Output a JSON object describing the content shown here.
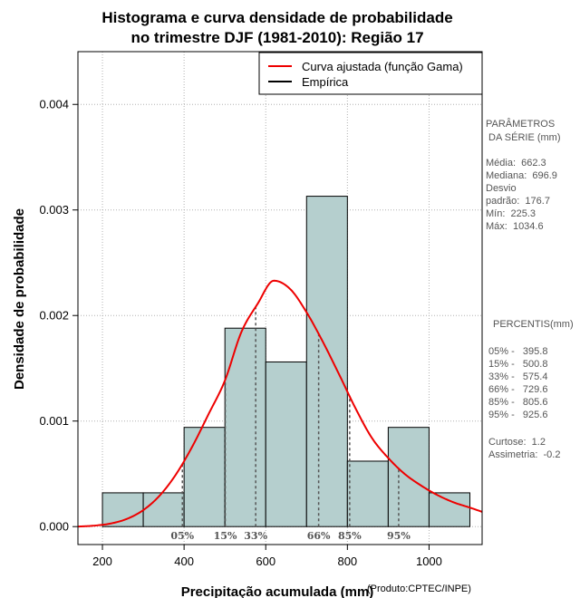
{
  "chart_data": {
    "type": "histogram",
    "title_lines": [
      "Histograma e curva densidade de probabilidade",
      "no trimestre DJF (1981-2010): Região 17"
    ],
    "xlabel": "Precipitação acumulada (mm)",
    "ylabel": "Densidade de probabilidade",
    "credit": "(Produto:CPTEC/INPE)",
    "xlim": [
      140,
      1130
    ],
    "ylim": [
      -0.00017,
      0.0045
    ],
    "x_ticks": [
      200,
      400,
      600,
      800,
      1000
    ],
    "x_tick_labels": [
      "200",
      "400",
      "600",
      "800",
      "1000"
    ],
    "y_ticks": [
      0.0,
      0.001,
      0.002,
      0.003,
      0.004
    ],
    "y_tick_labels": [
      "0.000",
      "0.001",
      "0.002",
      "0.003",
      "0.004"
    ],
    "grid": true,
    "bins": [
      {
        "x0": 200,
        "x1": 300,
        "density": 0.00032
      },
      {
        "x0": 300,
        "x1": 400,
        "density": 0.00032
      },
      {
        "x0": 400,
        "x1": 500,
        "density": 0.00094
      },
      {
        "x0": 500,
        "x1": 600,
        "density": 0.00188
      },
      {
        "x0": 600,
        "x1": 700,
        "density": 0.00156
      },
      {
        "x0": 700,
        "x1": 800,
        "density": 0.00313
      },
      {
        "x0": 800,
        "x1": 900,
        "density": 0.00062
      },
      {
        "x0": 900,
        "x1": 1000,
        "density": 0.00094
      },
      {
        "x0": 1000,
        "x1": 1100,
        "density": 0.00032
      }
    ],
    "bar_color": "#b5cfce",
    "curve": {
      "name": "Curva ajustada (função Gama)",
      "color": "#ee0000",
      "x": [
        140,
        180,
        220,
        260,
        300,
        340,
        380,
        420,
        460,
        500,
        540,
        580,
        620,
        660,
        700,
        740,
        780,
        820,
        860,
        900,
        940,
        980,
        1020,
        1060,
        1100,
        1130
      ],
      "y": [
        4e-07,
        9e-06,
        2.9e-05,
        7.3e-05,
        0.000156,
        0.000293,
        0.000494,
        0.000758,
        0.001066,
        0.001384,
        0.00184,
        0.00211,
        0.00233,
        0.00225,
        0.00203,
        0.00175,
        0.00144,
        0.00112,
        0.00084,
        0.00065,
        0.0005,
        0.00039,
        0.0003,
        0.00023,
        0.00018,
        0.00014
      ]
    },
    "legend": [
      {
        "label": "Curva ajustada (função Gama)",
        "color": "#ee0000"
      },
      {
        "label": "Empírica",
        "color": "#000000"
      }
    ],
    "percentiles": [
      {
        "label": "05%",
        "value": 395.8
      },
      {
        "label": "15%",
        "value": 500.8
      },
      {
        "label": "33%",
        "value": 575.4
      },
      {
        "label": "66%",
        "value": 729.6
      },
      {
        "label": "85%",
        "value": 805.6
      },
      {
        "label": "95%",
        "value": 925.6
      }
    ]
  },
  "stats_panel": {
    "heading_lines": [
      "PARÂMETROS",
      " DA SÉRIE (mm)"
    ],
    "lines": [
      "Média:  662.3",
      "Mediana:  696.9",
      "Desvio",
      "padrão:  176.7",
      "Mín:  225.3",
      "Máx:  1034.6"
    ]
  },
  "percentile_panel": {
    "heading": "PERCENTIS(mm)",
    "lines": [
      "05% -   395.8",
      "15% -   500.8",
      "33% -   575.4",
      "66% -   729.6",
      "85% -   805.6",
      "95% -   925.6"
    ],
    "extra_lines": [
      "Curtose:  1.2",
      "Assimetria:  -0.2"
    ]
  }
}
